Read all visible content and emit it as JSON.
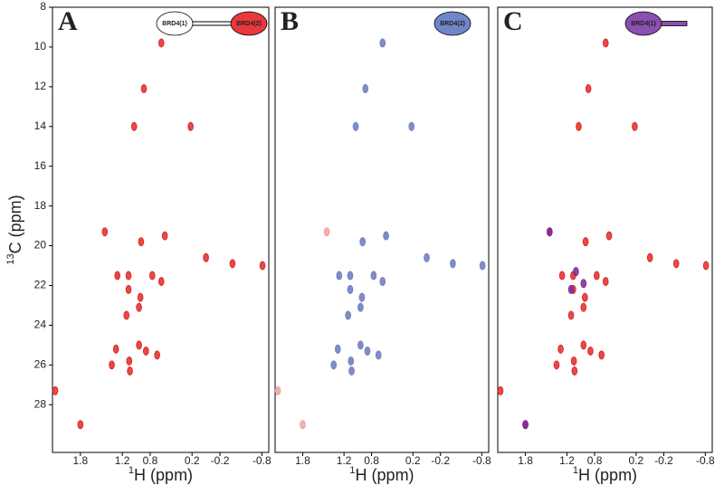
{
  "chart_data": [
    {
      "type": "scatter",
      "panel_label": "A",
      "schematic": [
        {
          "label": "BRD4(1)",
          "color": "#ffffff"
        },
        {
          "label": "BRD4(2)",
          "color": "#e8383b"
        }
      ],
      "xlim": [
        2.2,
        -0.9
      ],
      "ylim": [
        8,
        30.4
      ],
      "xticks": [
        1.8,
        1.2,
        0.8,
        0.2,
        -0.2,
        -0.8
      ],
      "yticks": [
        8,
        10,
        12,
        14,
        16,
        18,
        20,
        22,
        24,
        26,
        28
      ],
      "x_label": {
        "sup": "1",
        "text": "H (ppm)"
      },
      "y_label": {
        "sup": "13",
        "text": "C (ppm)"
      },
      "series": [
        {
          "color": "#e02a2a",
          "x": [
            0.64,
            0.89,
            1.03,
            0.22,
            1.45,
            0.93,
            0.59,
            0.0,
            -0.38,
            -0.81,
            1.27,
            1.11,
            0.77,
            1.11,
            0.64,
            0.94,
            0.96,
            1.14,
            1.29,
            0.96,
            0.86,
            0.7,
            1.35,
            1.1,
            1.09,
            2.16,
            1.8
          ],
          "y": [
            9.8,
            12.1,
            14.0,
            14.0,
            19.3,
            19.8,
            19.5,
            20.6,
            20.9,
            21.0,
            21.5,
            21.5,
            21.5,
            22.2,
            21.8,
            22.6,
            23.1,
            23.5,
            25.2,
            25.0,
            25.3,
            25.5,
            26.0,
            25.8,
            26.3,
            27.3,
            29.0
          ]
        }
      ]
    },
    {
      "type": "scatter",
      "panel_label": "B",
      "schematic": [
        {
          "label": "BRD4(2)",
          "color": "#6f86c8"
        }
      ],
      "xlim": [
        2.2,
        -0.9
      ],
      "ylim": [
        8,
        30.4
      ],
      "xticks": [
        1.8,
        1.2,
        0.8,
        0.2,
        -0.2,
        -0.8
      ],
      "x_label": {
        "sup": "1",
        "text": "H (ppm)"
      },
      "series": [
        {
          "color": "#f0a0a0",
          "x": [
            0.64,
            0.89,
            1.03,
            0.22,
            1.45,
            0.93,
            0.59,
            0.0,
            -0.38,
            -0.81,
            1.27,
            1.11,
            0.77,
            1.11,
            0.64,
            0.94,
            0.96,
            1.14,
            1.29,
            0.96,
            0.86,
            0.7,
            1.35,
            1.1,
            1.09,
            2.16,
            1.8
          ],
          "y": [
            9.8,
            12.1,
            14.0,
            14.0,
            19.3,
            19.8,
            19.5,
            20.6,
            20.9,
            21.0,
            21.5,
            21.5,
            21.5,
            22.2,
            21.8,
            22.6,
            23.1,
            23.5,
            25.2,
            25.0,
            25.3,
            25.5,
            26.0,
            25.8,
            26.3,
            27.3,
            29.0
          ]
        },
        {
          "color": "#6f86c8",
          "x": [
            0.64,
            0.89,
            1.03,
            0.22,
            0.93,
            0.59,
            0.0,
            -0.38,
            -0.81,
            1.27,
            1.11,
            0.77,
            1.11,
            0.64,
            0.94,
            0.96,
            1.14,
            1.29,
            0.96,
            0.86,
            0.7,
            1.35,
            1.1,
            1.09
          ],
          "y": [
            9.8,
            12.1,
            14.0,
            14.0,
            19.8,
            19.5,
            20.6,
            20.9,
            21.0,
            21.5,
            21.5,
            21.5,
            22.2,
            21.8,
            22.6,
            23.1,
            23.5,
            25.2,
            25.0,
            25.3,
            25.5,
            26.0,
            25.8,
            26.3
          ]
        }
      ]
    },
    {
      "type": "scatter",
      "panel_label": "C",
      "schematic": [
        {
          "label": "BRD4(1)",
          "color": "#8a4fb0"
        }
      ],
      "tail": true,
      "xlim": [
        2.2,
        -0.9
      ],
      "ylim": [
        8,
        30.4
      ],
      "xticks": [
        1.8,
        1.2,
        0.8,
        0.2,
        -0.2,
        -0.8
      ],
      "x_label": {
        "sup": "1",
        "text": "H (ppm)"
      },
      "series": [
        {
          "color": "#e02a2a",
          "x": [
            0.64,
            0.89,
            1.03,
            0.22,
            1.45,
            0.93,
            0.59,
            0.0,
            -0.38,
            -0.81,
            1.27,
            1.11,
            0.77,
            1.11,
            0.64,
            0.94,
            0.96,
            1.14,
            1.29,
            0.96,
            0.86,
            0.7,
            1.35,
            1.1,
            1.09,
            2.16,
            1.8
          ],
          "y": [
            9.8,
            12.1,
            14.0,
            14.0,
            19.3,
            19.8,
            19.5,
            20.6,
            20.9,
            21.0,
            21.5,
            21.5,
            21.5,
            22.2,
            21.8,
            22.6,
            23.1,
            23.5,
            25.2,
            25.0,
            25.3,
            25.5,
            26.0,
            25.8,
            26.3,
            27.3,
            29.0
          ]
        },
        {
          "color": "#7a2a9a",
          "x": [
            1.45,
            1.14,
            0.96,
            1.8,
            1.07
          ],
          "y": [
            19.3,
            22.2,
            21.9,
            29.0,
            21.3
          ]
        }
      ]
    }
  ]
}
